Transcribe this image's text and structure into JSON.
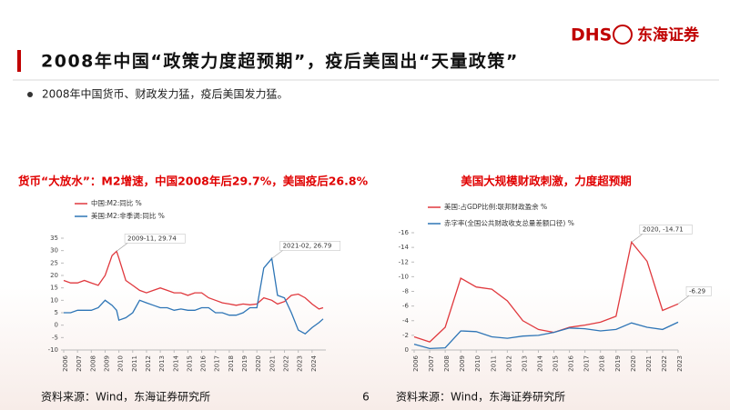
{
  "header": {
    "title": "2008年中国“政策力度超预期”，疫后美国出“天量政策”",
    "logo_mark": "DHS",
    "logo_name": "东海证券"
  },
  "bullet": "2008年中国货币、财政发力猛，疫后美国发力猛。",
  "page_number": "6",
  "sources": [
    "资料来源：Wind，东海证券研究所",
    "资料来源：Wind，东海证券研究所"
  ],
  "chart_data": [
    {
      "type": "line",
      "title": "货币“大放水”：M2增速，中国2008年后29.7%，美国疫后26.8%",
      "x": [
        2006,
        2006.5,
        2007,
        2007.5,
        2008,
        2008.5,
        2009,
        2009.5,
        2009.83,
        2010,
        2010.5,
        2011,
        2011.5,
        2012,
        2012.5,
        2013,
        2013.5,
        2014,
        2014.5,
        2015,
        2015.5,
        2016,
        2016.5,
        2017,
        2017.5,
        2018,
        2018.5,
        2019,
        2019.5,
        2020,
        2020.5,
        2021.08,
        2021.5,
        2022,
        2022.5,
        2023,
        2023.5,
        2024,
        2024.5,
        2024.8
      ],
      "series": [
        {
          "name": "中国:M2:同比 %",
          "color": "#e0393e",
          "values": [
            18,
            17,
            17,
            18,
            17,
            16,
            20,
            28,
            29.74,
            27,
            18,
            16,
            14,
            13,
            14,
            15,
            14,
            13,
            13,
            12,
            13,
            13,
            11,
            10,
            9,
            8.5,
            8,
            8.5,
            8.2,
            8.5,
            11,
            10,
            8.5,
            9.5,
            12,
            12.5,
            11,
            8.5,
            6.5,
            7
          ]
        },
        {
          "name": "美国:M2:非季调:同比 %",
          "color": "#2e75b6",
          "values": [
            5,
            5,
            6,
            6,
            6,
            7,
            10,
            8,
            6,
            2,
            3,
            5,
            10,
            9,
            8,
            7,
            7,
            6,
            6.5,
            6,
            6,
            7,
            7,
            5,
            5,
            4,
            4,
            5,
            7,
            7,
            23,
            26.79,
            12,
            11,
            5,
            -2,
            -3.5,
            -1,
            1,
            2.5
          ]
        }
      ],
      "xlim": [
        2006,
        2025
      ],
      "xticks": [
        2006,
        2007,
        2008,
        2009,
        2010,
        2011,
        2012,
        2013,
        2014,
        2015,
        2016,
        2017,
        2018,
        2019,
        2020,
        2021,
        2022,
        2023,
        2024
      ],
      "ylim": [
        -10,
        35
      ],
      "yticks": [
        -10,
        -5,
        0,
        5,
        10,
        15,
        20,
        25,
        30,
        35
      ],
      "annotations": [
        {
          "text": "2009-11, 29.74",
          "x": 2009.83,
          "y": 29.74
        },
        {
          "text": "2021-02, 26.79",
          "x": 2021.08,
          "y": 26.79
        }
      ]
    },
    {
      "type": "line",
      "title": "美国大规模财政刺激，力度超预期",
      "x": [
        2006,
        2007,
        2008,
        2009,
        2010,
        2011,
        2012,
        2013,
        2014,
        2015,
        2016,
        2017,
        2018,
        2019,
        2020,
        2021,
        2022,
        2023
      ],
      "series": [
        {
          "name": "美国:占GDP比例:联邦财政盈余 %",
          "color": "#e0393e",
          "values": [
            -1.8,
            -1.1,
            -3.1,
            -9.8,
            -8.6,
            -8.3,
            -6.7,
            -4.0,
            -2.8,
            -2.4,
            -3.1,
            -3.4,
            -3.8,
            -4.6,
            -14.71,
            -12.1,
            -5.4,
            -6.29
          ]
        },
        {
          "name": "赤字率(全国公共财政收支总量差额口径) %",
          "color": "#2e75b6",
          "values": [
            -0.8,
            -0.2,
            -0.3,
            -2.6,
            -2.5,
            -1.8,
            -1.6,
            -1.9,
            -2.0,
            -2.4,
            -3.0,
            -2.9,
            -2.6,
            -2.8,
            -3.7,
            -3.1,
            -2.8,
            -3.8
          ]
        }
      ],
      "xlim": [
        2006,
        2023
      ],
      "xticks": [
        2006,
        2007,
        2008,
        2009,
        2010,
        2011,
        2012,
        2013,
        2014,
        2015,
        2016,
        2017,
        2018,
        2019,
        2020,
        2021,
        2022,
        2023
      ],
      "ylim": [
        0,
        -16
      ],
      "yticks": [
        -16,
        -14,
        -12,
        -10,
        -8,
        -6,
        -4,
        -2,
        0
      ],
      "annotations": [
        {
          "text": "2020, -14.71",
          "x": 2020,
          "y": -14.71
        },
        {
          "text": "-6.29",
          "x": 2023,
          "y": -6.29
        }
      ]
    }
  ]
}
